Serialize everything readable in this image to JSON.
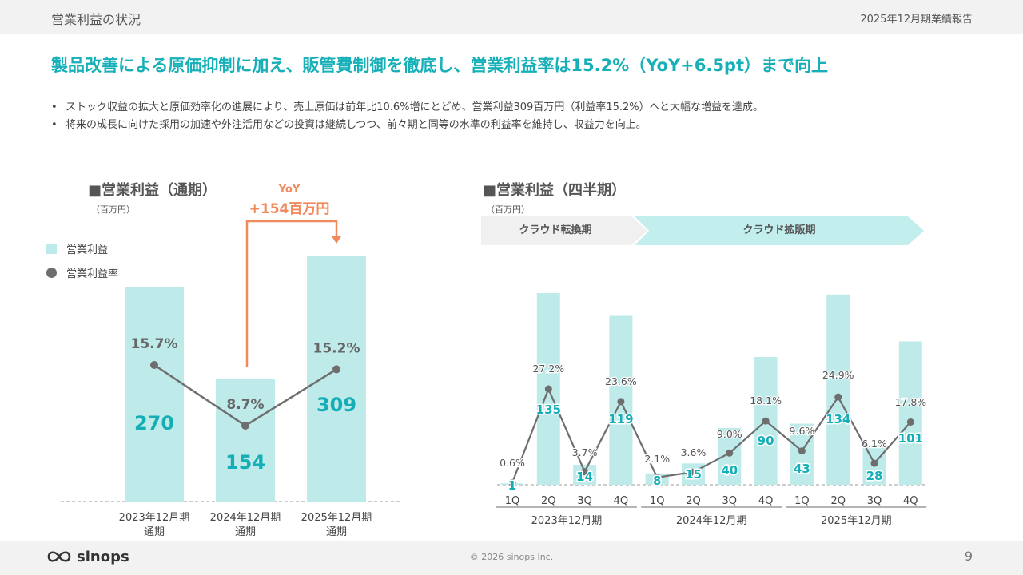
{
  "header": {
    "section_title": "営業利益の状況",
    "report_title": "2025年12月期業績報告"
  },
  "headline": "製品改善による原価抑制に加え、販管費制御を徹底し、営業利益率は15.2%（YoY+6.5pt）まで向上",
  "bullets": [
    "ストック収益の拡大と原価効率化の進展により、売上原価は前年比10.6%増にとどめ、営業利益309百万円（利益率15.2%）へと大幅な増益を達成。",
    "将来の成長に向けた採用の加速や外注活用などの投資は継続しつつ、前々期と同等の水準の利益率を維持し、収益力を向上。"
  ],
  "annual": {
    "title": "■営業利益（通期）",
    "unit": "（百万円）",
    "legend": {
      "bar": "営業利益",
      "line": "営業利益率"
    },
    "yoy_label": "YoY",
    "yoy_value": "+154百万円"
  },
  "quarterly": {
    "title": "■営業利益（四半期）",
    "unit": "（百万円）",
    "phases": [
      "クラウド転換期",
      "クラウド拡販期"
    ]
  },
  "colors": {
    "accent": "#17b0b8",
    "bar": "#bfeaea",
    "line": "#6e6e6e",
    "yoy": "#f08a5d",
    "value_label": "#14aeb6"
  },
  "chart_data": [
    {
      "type": "bar",
      "title": "■営業利益（通期）",
      "unit": "百万円",
      "categories": [
        "2023年12月期\n通期",
        "2024年12月期\n通期",
        "2025年12月期\n通期"
      ],
      "series": [
        {
          "name": "営業利益",
          "values": [
            270,
            154,
            309
          ],
          "labels": [
            "270",
            "154",
            "309"
          ]
        },
        {
          "name": "営業利益率",
          "kind": "line",
          "values": [
            15.7,
            8.7,
            15.2
          ],
          "labels": [
            "15.7%",
            "8.7%",
            "15.2%"
          ]
        }
      ],
      "annotation": "YoY +154百万円"
    },
    {
      "type": "bar",
      "title": "■営業利益（四半期）",
      "unit": "百万円",
      "categories": [
        "1Q",
        "2Q",
        "3Q",
        "4Q",
        "1Q",
        "2Q",
        "3Q",
        "4Q",
        "1Q",
        "2Q",
        "3Q",
        "4Q"
      ],
      "groups": [
        "2023年12月期",
        "2024年12月期",
        "2025年12月期"
      ],
      "series": [
        {
          "name": "営業利益",
          "values": [
            1,
            135,
            14,
            119,
            8,
            15,
            40,
            90,
            43,
            134,
            28,
            101
          ]
        },
        {
          "name": "営業利益率",
          "kind": "line",
          "values": [
            0.6,
            27.2,
            3.7,
            23.6,
            2.1,
            3.6,
            9.0,
            18.1,
            9.6,
            24.9,
            6.1,
            17.8
          ],
          "labels": [
            "0.6%",
            "27.2%",
            "3.7%",
            "23.6%",
            "2.1%",
            "3.6%",
            "9.0%",
            "18.1%",
            "9.6%",
            "24.9%",
            "6.1%",
            "17.8%"
          ]
        }
      ]
    }
  ],
  "footer": {
    "logo": "sinops",
    "copyright": "© 2026 sinops Inc.",
    "page": "9"
  }
}
